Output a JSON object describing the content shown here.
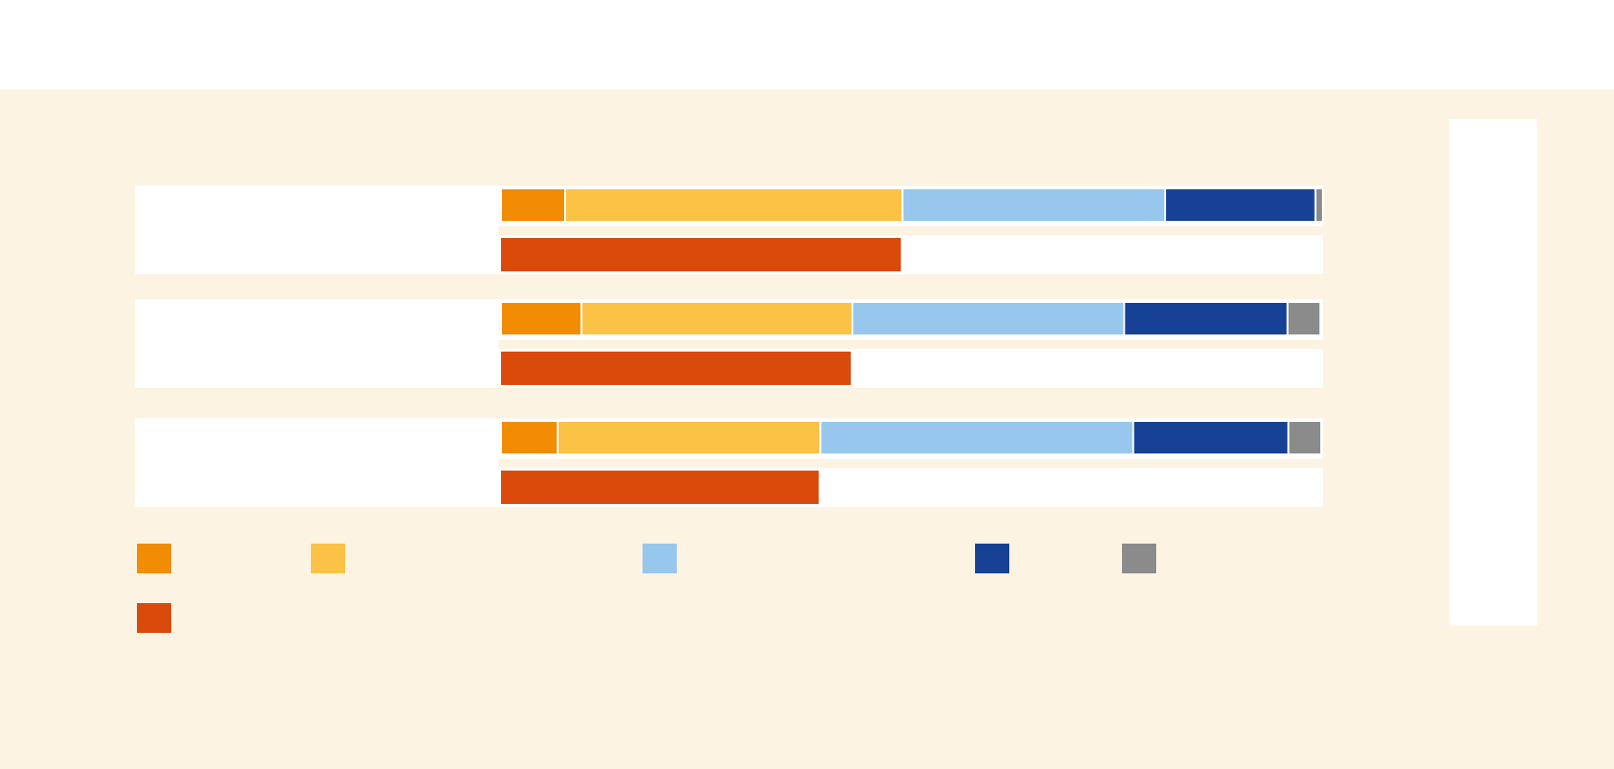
{
  "chart_data": {
    "type": "stacked-bar",
    "categories": [
      null,
      null,
      null
    ],
    "xlim": [
      0,
      100
    ],
    "series": [
      {
        "color": "#f28c03",
        "values": [
          7.8,
          9.8,
          6.9
        ]
      },
      {
        "color": "#fbc245",
        "values": [
          41.1,
          33.0,
          32.0
        ]
      },
      {
        "color": "#97c7ec",
        "values": [
          32.0,
          33.1,
          38.1
        ]
      },
      {
        "color": "#164194",
        "values": [
          18.3,
          19.9,
          18.9
        ]
      },
      {
        "color": "#8b8b8b",
        "values": [
          0.9,
          4.0,
          4.0
        ]
      }
    ],
    "comparison": {
      "color": "#da4a0b",
      "values": [
        48.7,
        42.6,
        38.7
      ]
    }
  }
}
